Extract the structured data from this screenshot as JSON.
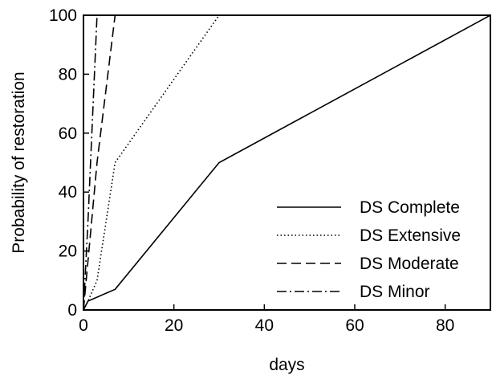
{
  "chart_data": {
    "type": "line",
    "title": "",
    "xlabel": "days",
    "ylabel": "Probability of restoration",
    "xlim": [
      0,
      90
    ],
    "ylim": [
      0,
      100
    ],
    "xticks": [
      0,
      20,
      40,
      60,
      80
    ],
    "yticks": [
      0,
      20,
      40,
      60,
      80,
      100
    ],
    "grid": false,
    "legend_position": "bottom-right",
    "series": [
      {
        "name": "DS Complete",
        "dash": "solid",
        "points": [
          [
            0,
            0
          ],
          [
            1,
            3
          ],
          [
            7,
            7
          ],
          [
            30,
            50
          ],
          [
            90,
            100
          ]
        ]
      },
      {
        "name": "DS Extensive",
        "dash": "dotted",
        "points": [
          [
            0,
            0
          ],
          [
            1,
            3
          ],
          [
            3,
            10
          ],
          [
            7,
            50
          ],
          [
            30,
            100
          ]
        ]
      },
      {
        "name": "DS Moderate",
        "dash": "dashed",
        "points": [
          [
            0,
            0
          ],
          [
            3,
            50
          ],
          [
            7,
            100
          ]
        ]
      },
      {
        "name": "DS Minor",
        "dash": "dashdot",
        "points": [
          [
            0,
            0
          ],
          [
            1,
            30
          ],
          [
            3,
            100
          ]
        ]
      }
    ]
  }
}
